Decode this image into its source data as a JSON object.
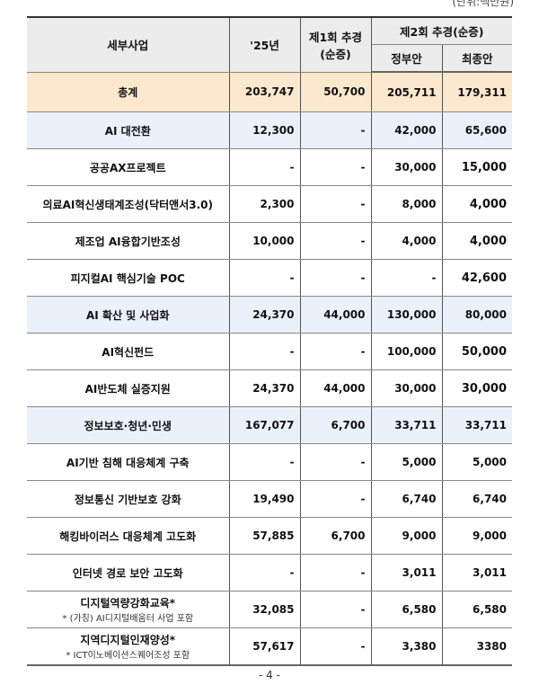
{
  "unit_label": "(단위:백만원)",
  "headers": {
    "project": "세부사업",
    "y25": "'25년",
    "first_l1": "제1회 추경",
    "first_l2": "(순증)",
    "second": "제2회 추경(순증)",
    "gov": "정부안",
    "final": "최종안"
  },
  "rows": [
    {
      "name": "총계",
      "y25": "203,747",
      "first": "50,700",
      "gov": "205,711",
      "final": "179,311",
      "type": "total"
    },
    {
      "name": "AI 대전환",
      "y25": "12,300",
      "first": "-",
      "gov": "42,000",
      "final": "65,600",
      "type": "group"
    },
    {
      "name": "공공AX프로젝트",
      "y25": "-",
      "first": "-",
      "gov": "30,000",
      "final": "15,000",
      "type": "item"
    },
    {
      "name": "의료AI혁신생태계조성(닥터앤서3.0)",
      "y25": "2,300",
      "first": "-",
      "gov": "8,000",
      "final": "4,000",
      "type": "item"
    },
    {
      "name": "제조업 AI융합기반조성",
      "y25": "10,000",
      "first": "-",
      "gov": "4,000",
      "final": "4,000",
      "type": "item"
    },
    {
      "name": "피지컬AI 핵심기술 POC",
      "y25": "-",
      "first": "-",
      "gov": "-",
      "final": "42,600",
      "type": "item"
    },
    {
      "name": "AI 확산 및 사업화",
      "y25": "24,370",
      "first": "44,000",
      "gov": "130,000",
      "final": "80,000",
      "type": "group"
    },
    {
      "name": "AI혁신펀드",
      "y25": "-",
      "first": "-",
      "gov": "100,000",
      "final": "50,000",
      "type": "item"
    },
    {
      "name": "AI반도체 실증지원",
      "y25": "24,370",
      "first": "44,000",
      "gov": "30,000",
      "final": "30,000",
      "type": "item"
    },
    {
      "name": "정보보호·청년·민생",
      "y25": "167,077",
      "first": "6,700",
      "gov": "33,711",
      "final": "33,711",
      "type": "group"
    },
    {
      "name": "AI기반 침해 대응체계 구축",
      "y25": "-",
      "first": "-",
      "gov": "5,000",
      "final": "5,000",
      "type": "item"
    },
    {
      "name": "정보통신 기반보호 강화",
      "y25": "19,490",
      "first": "-",
      "gov": "6,740",
      "final": "6,740",
      "type": "item"
    },
    {
      "name": "해킹바이러스 대응체계 고도화",
      "y25": "57,885",
      "first": "6,700",
      "gov": "9,000",
      "final": "9,000",
      "type": "item"
    },
    {
      "name": "인터넷 경로 보안 고도화",
      "y25": "-",
      "first": "-",
      "gov": "3,011",
      "final": "3,011",
      "type": "item"
    },
    {
      "name": "디지털역량강화교육*",
      "note": "* (가칭) AI디지털배움터 사업 포함",
      "y25": "32,085",
      "first": "-",
      "gov": "6,580",
      "final": "6,580",
      "type": "item"
    },
    {
      "name": "지역디지털인재양성*",
      "note": "* ICT이노베이션스퀘어조성 포함",
      "y25": "57,617",
      "first": "-",
      "gov": "3,380",
      "final": "3380",
      "type": "item"
    }
  ],
  "page_number": "- 4 -",
  "colors": {
    "total_bg": "#fce8cc",
    "group_bg": "#eaf1fb",
    "header_bg": "#ececec"
  }
}
